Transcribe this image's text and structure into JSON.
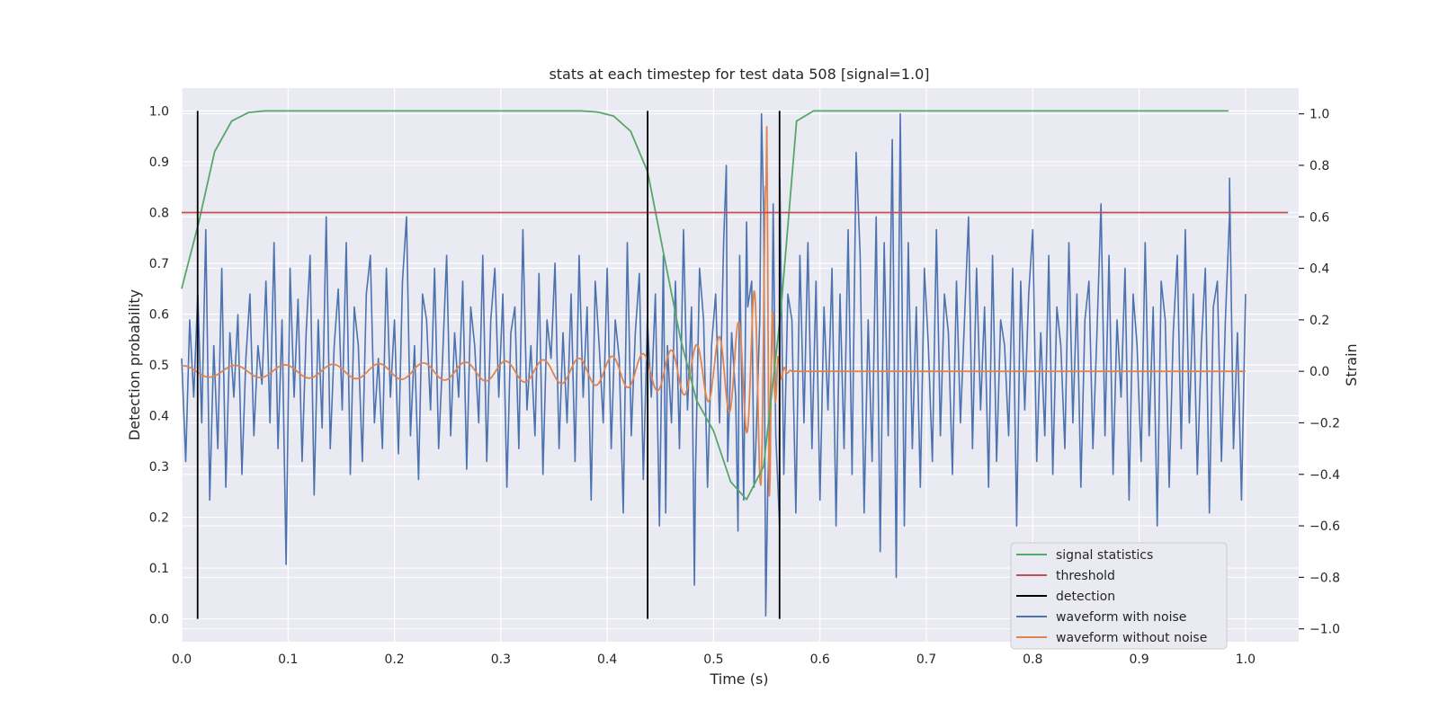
{
  "chart_data": {
    "type": "line",
    "title": "stats at each timestep for test data 508 [signal=1.0]",
    "xlabel": "Time (s)",
    "ylabel_left": "Detection probability",
    "ylabel_right": "Strain",
    "xlim": [
      0.0,
      1.05
    ],
    "ylim_left": [
      -0.045,
      1.045
    ],
    "ylim_right": [
      -1.05,
      1.1
    ],
    "xticks": [
      "0.0",
      "0.1",
      "0.2",
      "0.3",
      "0.4",
      "0.5",
      "0.6",
      "0.7",
      "0.8",
      "0.9",
      "1.0"
    ],
    "yticks_left": [
      "0.0",
      "0.1",
      "0.2",
      "0.3",
      "0.4",
      "0.5",
      "0.6",
      "0.7",
      "0.8",
      "0.9",
      "1.0"
    ],
    "yticks_right": [
      "−1.0",
      "−0.8",
      "−0.6",
      "−0.4",
      "−0.2",
      "0.0",
      "0.2",
      "0.4",
      "0.6",
      "0.8",
      "1.0"
    ],
    "grid": true,
    "legend_position": "bottom-right",
    "legend": [
      {
        "label": "signal statistics",
        "color": "#55a868"
      },
      {
        "label": "threshold",
        "color": "#c44e52"
      },
      {
        "label": "detection",
        "color": "#000000"
      },
      {
        "label": "waveform with noise",
        "color": "#4c72b0"
      },
      {
        "label": "waveform without noise",
        "color": "#dd8452"
      }
    ],
    "series": [
      {
        "name": "signal statistics",
        "axis": "left",
        "color": "#55a868",
        "x": [
          0.0,
          0.016,
          0.031,
          0.047,
          0.063,
          0.078,
          0.094,
          0.2,
          0.3,
          0.375,
          0.391,
          0.406,
          0.422,
          0.438,
          0.453,
          0.469,
          0.484,
          0.5,
          0.516,
          0.531,
          0.547,
          0.563,
          0.578,
          0.594,
          0.609,
          0.7,
          0.8,
          0.9,
          0.984
        ],
        "y": [
          0.65,
          0.78,
          0.92,
          0.98,
          0.997,
          1.0,
          1.0,
          1.0,
          1.0,
          1.0,
          0.998,
          0.99,
          0.96,
          0.88,
          0.72,
          0.55,
          0.43,
          0.37,
          0.27,
          0.235,
          0.3,
          0.6,
          0.98,
          1.0,
          1.0,
          1.0,
          1.0,
          1.0,
          1.0
        ]
      },
      {
        "name": "threshold",
        "axis": "left",
        "color": "#c44e52",
        "x": [
          0.0,
          1.04
        ],
        "y": [
          0.8,
          0.8
        ]
      }
    ],
    "detections": {
      "name": "detection",
      "axis": "left",
      "color": "#000000",
      "x": [
        0.015,
        0.438,
        0.562
      ],
      "ymin": 0.0,
      "ymax": 1.0
    },
    "waveform_with_noise": {
      "name": "waveform with noise",
      "axis": "right",
      "color": "#4c72b0",
      "x_start": 0.0,
      "x_end": 1.0,
      "samples": [
        0.05,
        -0.35,
        0.2,
        -0.1,
        0.3,
        -0.2,
        0.55,
        -0.5,
        0.1,
        -0.3,
        0.4,
        -0.45,
        0.15,
        -0.1,
        0.22,
        -0.4,
        0.05,
        0.3,
        -0.25,
        0.1,
        -0.05,
        0.35,
        -0.2,
        0.5,
        -0.3,
        0.2,
        -0.75,
        0.4,
        -0.1,
        0.28,
        -0.35,
        0.15,
        0.45,
        -0.48,
        0.2,
        -0.22,
        0.6,
        -0.3,
        0.1,
        0.32,
        -0.15,
        0.5,
        -0.4,
        0.25,
        0.1,
        -0.35,
        0.3,
        0.45,
        -0.2,
        0.05,
        -0.3,
        0.4,
        -0.1,
        0.2,
        -0.32,
        0.35,
        0.6,
        -0.25,
        0.1,
        -0.42,
        0.3,
        0.2,
        -0.15,
        0.4,
        -0.3,
        0.05,
        0.45,
        -0.25,
        0.15,
        -0.1,
        0.35,
        -0.38,
        0.25,
        0.1,
        -0.2,
        0.45,
        -0.35,
        0.2,
        0.4,
        -0.1,
        0.3,
        -0.45,
        0.15,
        0.25,
        -0.3,
        0.55,
        -0.15,
        0.1,
        -0.25,
        0.38,
        -0.4,
        0.2,
        0.05,
        0.42,
        -0.3,
        0.15,
        -0.2,
        0.3,
        -0.35,
        0.45,
        -0.1,
        0.25,
        -0.5,
        0.35,
        0.1,
        -0.2,
        0.4,
        -0.3,
        0.2,
        0.05,
        -0.55,
        0.5,
        -0.25,
        0.15,
        0.38,
        -0.42,
        0.2,
        -0.1,
        0.3,
        -0.6,
        0.45,
        0.1,
        -0.2,
        0.35,
        -0.3,
        0.55,
        -0.15,
        0.25,
        -0.4,
        0.4,
        0.2,
        -0.45,
        0.1,
        0.3,
        -0.2,
        0.5,
        -0.35,
        0.15,
        -0.1,
        0.45,
        -0.5,
        0.25,
        0.35,
        -0.3,
        0.2,
        0.6,
        -0.45,
        0.1,
        -0.25,
        0.75,
        -0.4,
        0.3,
        0.2,
        -0.55,
        0.45,
        -0.2,
        0.5,
        -0.3,
        0.35,
        -0.5,
        0.25,
        -0.15,
        0.4,
        -0.6,
        0.3,
        -0.3,
        0.55,
        -0.4,
        0.85,
        0.45,
        -0.55,
        0.2,
        -0.35,
        0.6,
        -0.7,
        0.5,
        -0.25,
        0.9,
        -0.8,
        1.0,
        -0.6,
        0.5,
        -0.3,
        0.25,
        -0.45,
        0.4,
        0.1,
        -0.35,
        0.55,
        -0.25,
        0.3,
        0.15,
        -0.4,
        0.35,
        -0.2,
        0.2,
        0.6,
        -0.3,
        0.4,
        -0.15,
        0.25,
        -0.45,
        0.45,
        -0.35,
        0.2,
        0.1,
        -0.25,
        0.4,
        -0.6,
        0.35,
        -0.15,
        0.3,
        0.55,
        -0.35,
        0.15,
        -0.25,
        0.45,
        -0.4,
        0.25,
        0.1,
        -0.3,
        0.5,
        -0.2,
        0.3,
        -0.45,
        0.2,
        0.35,
        -0.3,
        0.15,
        0.65,
        -0.25,
        0.45,
        -0.4,
        0.2,
        -0.1,
        0.4,
        -0.5,
        0.3,
        0.1,
        -0.35,
        0.5,
        -0.25,
        0.25,
        -0.6,
        0.35,
        0.2,
        -0.45,
        0.15,
        0.45,
        -0.3,
        0.55,
        -0.2,
        0.3,
        -0.4,
        0.1,
        0.4,
        -0.55,
        0.25,
        0.35,
        -0.35,
        0.2,
        0.6,
        -0.3,
        0.15,
        -0.5,
        0.3
      ],
      "wild_points": [
        {
          "x": 0.455,
          "y": -0.55
        },
        {
          "x": 0.482,
          "y": -0.83
        },
        {
          "x": 0.512,
          "y": 0.8
        },
        {
          "x": 0.523,
          "y": -0.62
        },
        {
          "x": 0.531,
          "y": 0.58
        },
        {
          "x": 0.538,
          "y": -0.45
        },
        {
          "x": 0.545,
          "y": 1.0
        },
        {
          "x": 0.549,
          "y": -0.95
        },
        {
          "x": 0.556,
          "y": 0.65
        },
        {
          "x": 0.562,
          "y": -0.6
        },
        {
          "x": 0.985,
          "y": 0.75
        }
      ]
    },
    "waveform_without_noise": {
      "name": "waveform without noise",
      "axis": "right",
      "color": "#dd8452",
      "x_start": 0.0,
      "x_end": 1.0,
      "merger_time": 0.55,
      "peak_amplitude": 0.95
    }
  }
}
